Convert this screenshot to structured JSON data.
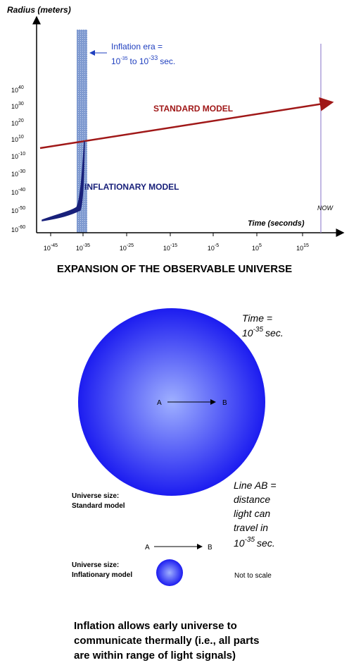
{
  "expansion_chart": {
    "y_axis_title": "Radius (meters)",
    "x_axis_title": "Time (seconds)",
    "tick_base": "10",
    "y_tick_exponents": [
      "40",
      "30",
      "20",
      "10",
      "-10",
      "-30",
      "-40",
      "-50",
      "-60"
    ],
    "x_tick_exponents": [
      "-45",
      "-35",
      "-25",
      "-15",
      "-5",
      "5",
      "15"
    ],
    "inflation_era": {
      "label": "Inflation era =",
      "base": "10",
      "start_exp": "-35",
      "to": "to 10",
      "end_exp": "-33",
      "unit": "sec."
    },
    "standard_model_label": "STANDARD MODEL",
    "inflationary_model_label": "INFLATIONARY MODEL",
    "now_label": "NOW",
    "caption": "EXPANSION OF THE OBSERVABLE UNIVERSE"
  },
  "comparison": {
    "time_label": "Time =",
    "time_base": "10",
    "time_exp": "-35",
    "time_unit": "sec.",
    "point_a": "A",
    "point_b": "B",
    "standard_size": [
      "Universe size:",
      "Standard model"
    ],
    "line_ab": [
      "Line AB =",
      "distance",
      "light can",
      "travel in"
    ],
    "line_ab_base": "10",
    "line_ab_exp": "-35",
    "line_ab_unit": "sec.",
    "inflationary_size": [
      "Universe size:",
      "Inflationary model"
    ],
    "scale_note": "Not to scale",
    "conclusion": [
      "Inflation allows early universe to",
      "communicate thermally (i.e., all parts",
      "are within range of light signals)"
    ]
  }
}
